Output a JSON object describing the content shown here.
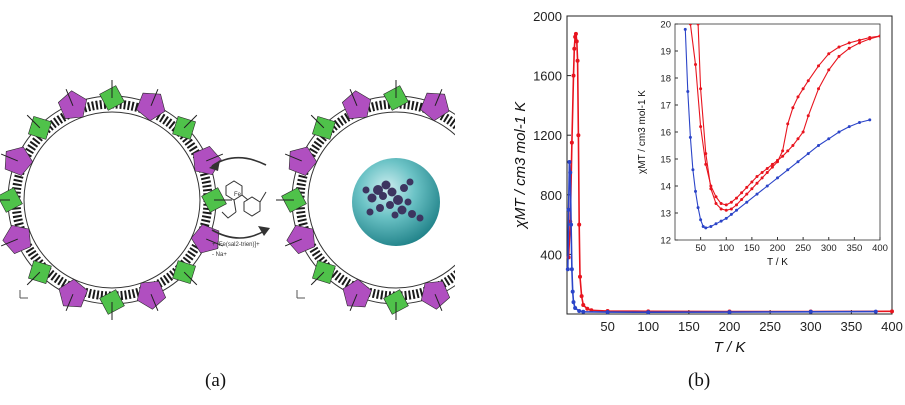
{
  "figure": {
    "caption_a": "(a)",
    "caption_b": "(b)",
    "scheme_legend_1": "+ [Fe(sal2-trien)]+",
    "scheme_legend_2": "- Na+",
    "colors": {
      "framework_purple": "#b04fc0",
      "framework_green": "#4fc24a",
      "sphere": "#3fa3a6",
      "series_red": "#e8141e",
      "series_blue": "#2b44c8"
    }
  },
  "chart_data": [
    {
      "type": "line",
      "name": "main",
      "xlabel": "T / K",
      "ylabel": "χMT / cm3 mol-1 K",
      "xlim": [
        0,
        400
      ],
      "ylim": [
        0,
        2000
      ],
      "xticks": [
        50,
        100,
        150,
        200,
        250,
        300,
        350,
        400
      ],
      "yticks": [
        400,
        800,
        1200,
        1600,
        2000
      ],
      "series": [
        {
          "color": "#e8141e",
          "x": [
            2,
            4,
            6,
            8,
            9,
            10,
            11,
            12,
            13,
            14,
            15,
            16,
            18,
            20,
            25,
            30,
            50,
            100,
            200,
            300,
            400
          ],
          "y": [
            380,
            620,
            1150,
            1600,
            1780,
            1860,
            1880,
            1830,
            1700,
            1200,
            600,
            250,
            120,
            60,
            35,
            25,
            20,
            18,
            17,
            17,
            18
          ]
        },
        {
          "color": "#2b44c8",
          "x": [
            1,
            2,
            3,
            4,
            5,
            6,
            7,
            8,
            10,
            15,
            20,
            50,
            100,
            200,
            300,
            380
          ],
          "y": [
            300,
            700,
            1020,
            950,
            600,
            300,
            150,
            80,
            40,
            20,
            15,
            13,
            12,
            13,
            15,
            16
          ]
        }
      ]
    },
    {
      "type": "line",
      "name": "inset",
      "xlabel": "T / K",
      "ylabel": "χMT / cm3 mol-1 K",
      "xlim": [
        0,
        400
      ],
      "ylim": [
        12,
        20
      ],
      "xticks": [
        50,
        100,
        150,
        200,
        250,
        300,
        350,
        400
      ],
      "yticks": [
        12,
        13,
        14,
        15,
        16,
        17,
        18,
        19,
        20
      ],
      "series": [
        {
          "color": "#e8141e",
          "x": [
            30,
            40,
            50,
            60,
            70,
            80,
            90,
            100,
            110,
            120,
            130,
            140,
            150,
            160,
            170,
            180,
            190,
            200,
            210,
            220,
            230,
            240,
            250,
            260,
            280,
            300,
            320,
            340,
            360,
            380,
            400
          ],
          "y": [
            20,
            18.5,
            16.2,
            14.8,
            14.0,
            13.6,
            13.35,
            13.3,
            13.4,
            13.55,
            13.75,
            13.95,
            14.15,
            14.35,
            14.5,
            14.65,
            14.8,
            14.95,
            15.1,
            15.3,
            15.5,
            15.75,
            16.0,
            16.6,
            17.6,
            18.3,
            18.8,
            19.1,
            19.3,
            19.45,
            19.55
          ]
        },
        {
          "color": "#e8141e",
          "x": [
            400,
            380,
            360,
            340,
            320,
            300,
            280,
            260,
            250,
            240,
            230,
            220,
            210,
            200,
            190,
            180,
            170,
            160,
            150,
            140,
            130,
            120,
            110,
            100,
            90,
            80,
            70,
            60,
            50,
            45
          ],
          "y": [
            19.55,
            19.5,
            19.4,
            19.3,
            19.15,
            18.9,
            18.45,
            17.9,
            17.6,
            17.3,
            16.9,
            16.3,
            15.3,
            14.9,
            14.7,
            14.5,
            14.3,
            14.1,
            13.9,
            13.7,
            13.5,
            13.3,
            13.15,
            13.1,
            13.15,
            13.35,
            13.9,
            15.2,
            17.6,
            20
          ]
        },
        {
          "color": "#2b44c8",
          "x": [
            20,
            25,
            30,
            35,
            40,
            45,
            50,
            55,
            60,
            70,
            80,
            90,
            100,
            110,
            120,
            140,
            160,
            180,
            200,
            220,
            240,
            260,
            280,
            300,
            320,
            340,
            360,
            380
          ],
          "y": [
            19.8,
            17.5,
            15.8,
            14.6,
            13.8,
            13.2,
            12.75,
            12.5,
            12.45,
            12.5,
            12.6,
            12.7,
            12.8,
            12.95,
            13.1,
            13.4,
            13.7,
            14.0,
            14.3,
            14.6,
            14.9,
            15.2,
            15.5,
            15.75,
            16.0,
            16.2,
            16.35,
            16.45
          ]
        }
      ]
    }
  ]
}
